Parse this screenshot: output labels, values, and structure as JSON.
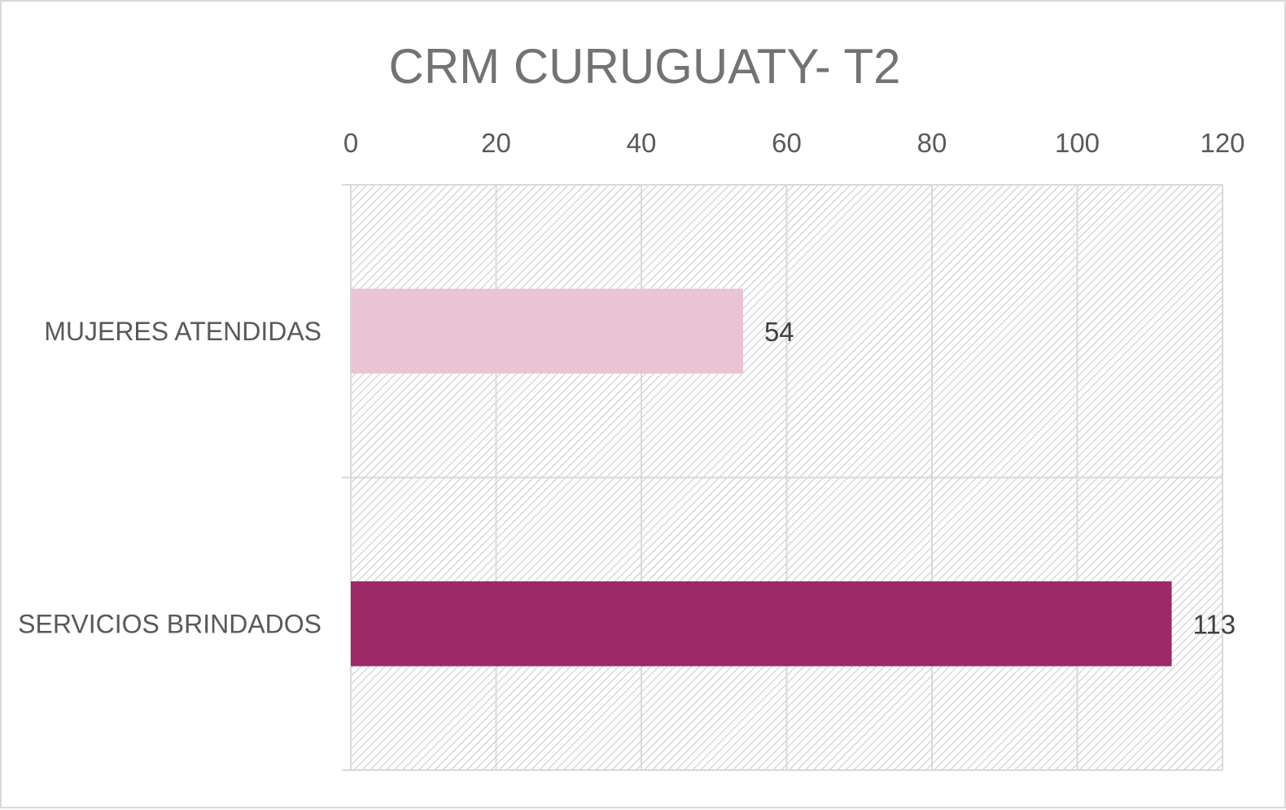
{
  "chart_data": {
    "type": "bar",
    "orientation": "horizontal",
    "title": "CRM CURUGUATY- T2",
    "categories": [
      "MUJERES ATENDIDAS",
      "SERVICIOS BRINDADOS"
    ],
    "values": [
      54,
      113
    ],
    "data_labels": [
      "54",
      "113"
    ],
    "bar_colors": [
      "#e8c4d4",
      "#9c2868"
    ],
    "xlim": [
      0,
      120
    ],
    "xticks": [
      "0",
      "20",
      "40",
      "60",
      "80",
      "100",
      "120"
    ],
    "x_axis_position": "top",
    "grid": true,
    "legend": "none",
    "plot_fill": "diagonal-hatch"
  }
}
